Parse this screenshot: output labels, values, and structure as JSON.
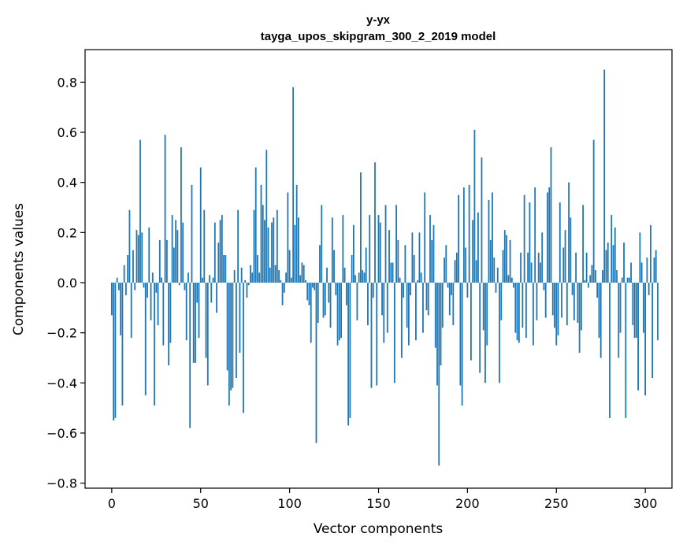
{
  "chart_data": {
    "type": "bar",
    "title": "y-yx",
    "subtitle": "tayga_upos_skipgram_300_2_2019 model",
    "xlabel": "Vector components",
    "ylabel": "Components values",
    "xlim": [
      -15,
      315
    ],
    "ylim": [
      -0.82,
      0.93
    ],
    "xticks": [
      0,
      50,
      100,
      150,
      200,
      250,
      300
    ],
    "xtick_labels": [
      "0",
      "50",
      "100",
      "150",
      "200",
      "250",
      "300"
    ],
    "yticks": [
      -0.8,
      -0.6,
      -0.4,
      -0.2,
      0.0,
      0.2,
      0.4,
      0.6,
      0.8
    ],
    "ytick_labels": [
      "−0.8",
      "−0.6",
      "−0.4",
      "−0.2",
      "0.0",
      "0.2",
      "0.4",
      "0.6",
      "0.8"
    ],
    "bar_color": "#1f77b4",
    "grid": false,
    "values": [
      -0.13,
      -0.55,
      -0.54,
      0.02,
      -0.03,
      -0.21,
      -0.49,
      0.07,
      -0.05,
      0.11,
      0.29,
      -0.22,
      0.13,
      -0.03,
      0.21,
      0.19,
      0.57,
      0.2,
      -0.02,
      -0.45,
      -0.06,
      0.22,
      -0.15,
      0.04,
      -0.49,
      -0.04,
      -0.17,
      0.17,
      0.02,
      -0.25,
      0.59,
      0.17,
      -0.33,
      -0.24,
      0.27,
      0.14,
      0.25,
      0.21,
      -0.01,
      0.54,
      0.24,
      -0.03,
      -0.23,
      0.04,
      -0.58,
      0.39,
      -0.32,
      -0.32,
      -0.08,
      -0.22,
      0.46,
      0.02,
      0.29,
      -0.3,
      -0.41,
      0.03,
      -0.08,
      0.02,
      0.24,
      -0.12,
      0.16,
      0.25,
      0.27,
      0.11,
      0.11,
      -0.35,
      -0.49,
      -0.43,
      -0.42,
      0.05,
      -0.38,
      0.29,
      -0.28,
      0.06,
      -0.52,
      0.01,
      -0.06,
      -0.01,
      0.07,
      0.04,
      0.29,
      0.46,
      0.11,
      0.04,
      0.39,
      0.31,
      0.25,
      0.53,
      0.22,
      0.06,
      0.24,
      0.26,
      0.07,
      0.29,
      0.05,
      0.01,
      -0.09,
      -0.04,
      0.04,
      0.36,
      0.13,
      0.02,
      0.78,
      0.23,
      0.39,
      0.26,
      0.03,
      0.08,
      0.07,
      0.01,
      -0.07,
      -0.09,
      -0.24,
      -0.02,
      -0.03,
      -0.64,
      -0.16,
      0.15,
      0.31,
      -0.14,
      -0.13,
      0.06,
      -0.08,
      -0.18,
      0.26,
      0.13,
      -0.05,
      -0.25,
      -0.23,
      -0.22,
      0.27,
      0.06,
      -0.09,
      -0.57,
      -0.54,
      0.11,
      0.23,
      0.03,
      -0.15,
      0.04,
      0.44,
      0.05,
      0.04,
      0.14,
      -0.17,
      0.27,
      -0.42,
      -0.06,
      0.48,
      -0.41,
      0.27,
      0.24,
      -0.13,
      -0.24,
      0.31,
      -0.2,
      0.21,
      0.08,
      0.08,
      -0.4,
      0.31,
      0.17,
      0.02,
      -0.3,
      -0.06,
      0.15,
      -0.18,
      -0.25,
      -0.05,
      0.2,
      0.11,
      -0.23,
      0.01,
      0.2,
      0.04,
      -0.2,
      0.36,
      -0.11,
      -0.13,
      0.27,
      0.17,
      0.23,
      -0.26,
      -0.41,
      -0.73,
      -0.33,
      -0.18,
      0.1,
      0.15,
      -0.02,
      -0.13,
      -0.05,
      -0.17,
      0.09,
      0.12,
      0.35,
      -0.41,
      -0.49,
      0.38,
      0.14,
      -0.06,
      0.39,
      -0.31,
      0.25,
      0.61,
      0.09,
      0.28,
      -0.36,
      0.5,
      -0.19,
      -0.4,
      -0.25,
      0.33,
      0.17,
      0.36,
      0.1,
      -0.04,
      0.06,
      -0.4,
      -0.15,
      0.13,
      0.21,
      0.19,
      0.03,
      0.17,
      0.02,
      -0.02,
      -0.2,
      -0.23,
      -0.24,
      0.12,
      -0.18,
      0.35,
      -0.22,
      0.12,
      0.32,
      0.08,
      -0.25,
      0.38,
      -0.15,
      0.12,
      0.08,
      0.2,
      -0.03,
      -0.14,
      0.36,
      0.38,
      0.54,
      -0.13,
      -0.18,
      -0.25,
      -0.21,
      0.32,
      -0.14,
      0.14,
      0.21,
      -0.17,
      0.4,
      0.26,
      -0.05,
      -0.15,
      0.12,
      -0.16,
      -0.28,
      -0.19,
      0.31,
      0.01,
      0.12,
      -0.02,
      0.03,
      0.07,
      0.57,
      0.05,
      -0.06,
      -0.22,
      -0.3,
      0.05,
      0.85,
      0.13,
      0.16,
      -0.54,
      0.27,
      0.15,
      0.22,
      0.05,
      -0.3,
      -0.2,
      0.02,
      0.16,
      -0.54,
      0.02,
      0.02,
      0.08,
      -0.17,
      -0.22,
      -0.22,
      -0.43,
      0.2,
      0.08,
      -0.2,
      -0.45,
      0.1,
      -0.05,
      0.23,
      -0.38,
      0.1,
      0.13,
      -0.23
    ]
  }
}
